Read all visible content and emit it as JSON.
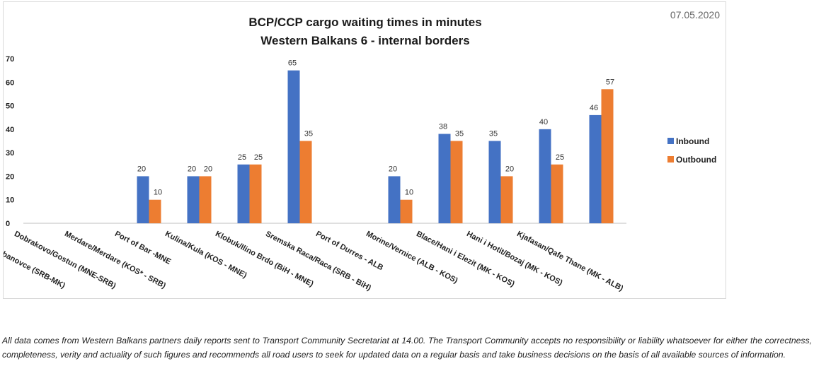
{
  "chart_data": {
    "type": "bar",
    "title": "BCP/CCP cargo waiting times in minutes",
    "subtitle": "Western Balkans 6 - internal borders",
    "date": "07.05.2020",
    "ylim": [
      0,
      70
    ],
    "yticks": [
      0,
      10,
      20,
      30,
      40,
      50,
      60,
      70
    ],
    "grid": false,
    "legend_position": "right",
    "categories": [
      "Presevo/ Tabanovce (SRB-MK)",
      "Dobrakovo/Gostun (MNE-SRB)",
      "Merdare/Merdare (KOS* - SRB)",
      "Port of Bar -MNE",
      "Kulina/Kula (KOS - MNE)",
      "Klobuk/Ilino Brdo (BiH - MNE)",
      "Sremska Raca/Raca (SRB - BiH)",
      "Port of Durres - ALB",
      "Morine/Vernice (ALB - KOS)",
      "Blace/Hani i Elezit (MK - KOS)",
      "Hani i Hotit/Bozaj (MK - KOS)",
      "Kjafasan/Qafe Thane (MK - ALB)"
    ],
    "series": [
      {
        "name": "Inbound",
        "color": "#4472C4",
        "values": [
          null,
          null,
          20,
          20,
          25,
          65,
          null,
          20,
          38,
          35,
          40,
          46
        ]
      },
      {
        "name": "Outbound",
        "color": "#ED7D31",
        "values": [
          null,
          null,
          10,
          20,
          25,
          35,
          null,
          10,
          35,
          20,
          25,
          57
        ]
      }
    ]
  },
  "footer": {
    "disclaimer": "All data comes from Western Balkans partners daily reports sent to Transport Community Secretariat at 14.00. The Transport Community accepts no responsibility or liability whatsoever for either the correctness, completeness, verity and actuality of such figures and recommends all road users to seek for updated data on a regular basis and take business decisions on the basis of all available sources of information."
  }
}
